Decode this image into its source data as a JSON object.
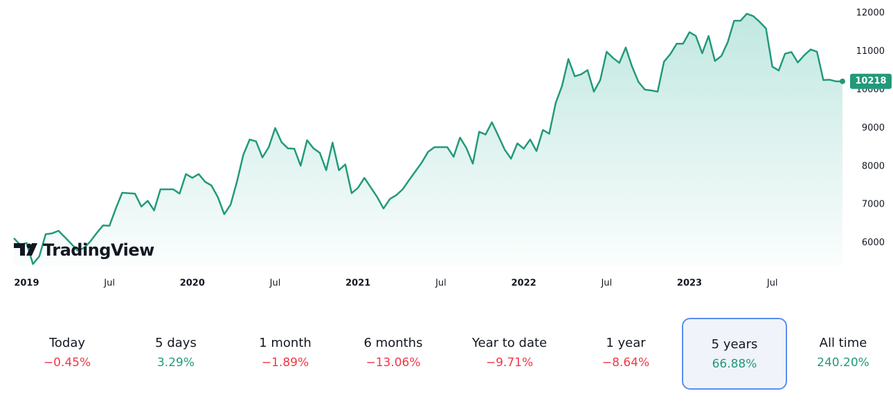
{
  "chart_data": {
    "type": "line",
    "color": "#22997a",
    "categories": [
      null,
      null,
      "2019",
      null,
      null,
      null,
      null,
      null,
      null,
      null,
      null,
      null,
      null,
      null,
      null,
      "Jul",
      null,
      null,
      null,
      null,
      null,
      null,
      null,
      null,
      null,
      null,
      null,
      null,
      "2020",
      null,
      null,
      null,
      null,
      null,
      null,
      null,
      null,
      null,
      null,
      null,
      null,
      "Jul",
      null,
      null,
      null,
      null,
      null,
      null,
      null,
      null,
      null,
      null,
      null,
      null,
      "2021",
      null,
      null,
      null,
      null,
      null,
      null,
      null,
      null,
      null,
      null,
      null,
      null,
      "Jul",
      null,
      null,
      null,
      null,
      null,
      null,
      null,
      null,
      null,
      null,
      null,
      null,
      "2022",
      null,
      null,
      null,
      null,
      null,
      null,
      null,
      null,
      null,
      null,
      null,
      null,
      "Jul",
      null,
      null,
      null,
      null,
      null,
      null,
      null,
      null,
      null,
      null,
      null,
      null,
      "2023",
      null,
      null,
      null,
      null,
      null,
      null,
      null,
      null,
      null,
      null,
      null,
      null,
      "Jul",
      null,
      null,
      null,
      null,
      null,
      null,
      null,
      null,
      null,
      null,
      null
    ],
    "values": [
      6126,
      5950,
      6000,
      5450,
      5650,
      6230,
      6250,
      6320,
      6150,
      5980,
      5800,
      5870,
      6040,
      6260,
      6460,
      6450,
      6900,
      7310,
      7300,
      7290,
      6950,
      7100,
      6850,
      7400,
      7400,
      7400,
      7290,
      7800,
      7700,
      7800,
      7600,
      7500,
      7200,
      6750,
      7000,
      7600,
      8300,
      8700,
      8650,
      8234,
      8500,
      9000,
      8630,
      8470,
      8460,
      8018,
      8680,
      8470,
      8350,
      7900,
      8620,
      7900,
      8050,
      7300,
      7441,
      7700,
      7450,
      7200,
      6900,
      7150,
      7250,
      7400,
      7640,
      7870,
      8100,
      8380,
      8500,
      8500,
      8500,
      8250,
      8750,
      8480,
      8070,
      8900,
      8830,
      9150,
      8800,
      8440,
      8200,
      8600,
      8460,
      8700,
      8400,
      8950,
      8850,
      9650,
      10100,
      10800,
      10350,
      10400,
      10510,
      9950,
      10250,
      10990,
      10830,
      10700,
      11100,
      10600,
      10200,
      10000,
      9980,
      9950,
      10730,
      10930,
      11200,
      11200,
      11500,
      11400,
      10950,
      11400,
      10750,
      10880,
      11240,
      11800,
      11800,
      11982,
      11920,
      11770,
      11600,
      10600,
      10500,
      10940,
      10980,
      10710,
      10900,
      11050,
      10990,
      10250,
      10260,
      10216,
      10218
    ],
    "ylim": [
      5400,
      12340
    ],
    "yticks": [
      6000,
      7000,
      8000,
      9000,
      10000,
      11000,
      12000
    ]
  },
  "logo": "TradingView",
  "periods": [
    {
      "label": "Today",
      "change": "−0.45%",
      "color": "#f23645"
    },
    {
      "label": "5 days",
      "change": "3.29%",
      "color": "#22997a"
    },
    {
      "label": "1 month",
      "change": "−1.89%",
      "color": "#f23645"
    },
    {
      "label": "6 months",
      "change": "−13.06%",
      "color": "#f23645"
    },
    {
      "label": "Year to date",
      "change": "−9.71%",
      "color": "#f23645"
    },
    {
      "label": "1 year",
      "change": "−8.64%",
      "color": "#f23645"
    },
    {
      "label": "5 years",
      "change": "66.88%",
      "color": "#22997a"
    },
    {
      "label": "All time",
      "change": "240.20%",
      "color": "#22997a"
    }
  ],
  "selected_period": 6
}
